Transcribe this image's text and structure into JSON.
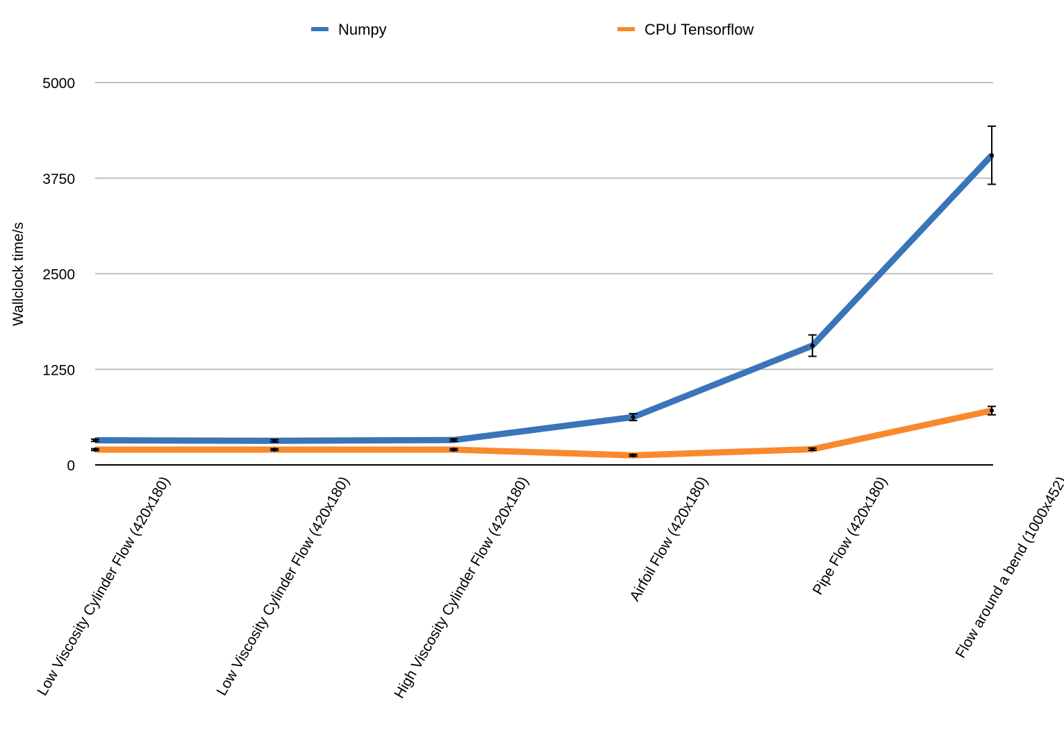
{
  "chart_data": {
    "type": "line",
    "ylabel": "Wallclock time/s",
    "xlabel": "",
    "ylim": [
      0,
      5000
    ],
    "yticks": [
      0,
      1250,
      2500,
      3750,
      5000
    ],
    "grid": true,
    "legend_position": "top",
    "categories": [
      "Low Viscosity Cylinder Flow (420x180)",
      "Low Viscosity Cylinder Flow (420x180)",
      "High Viscosity Cylinder Flow (420x180)",
      "Airfoil Flow (420x180)",
      "Pipe Flow (420x180)",
      "Flow around a bend (1000x452)"
    ],
    "series": [
      {
        "name": "Numpy",
        "color": "#3a74b9",
        "values": [
          322,
          315,
          325,
          625,
          1560,
          4050
        ],
        "error": [
          15,
          15,
          15,
          45,
          140,
          380
        ]
      },
      {
        "name": "CPU Tensorflow",
        "color": "#f88a2d",
        "values": [
          200,
          200,
          200,
          125,
          205,
          710
        ],
        "error": [
          12,
          12,
          12,
          12,
          15,
          55
        ]
      }
    ]
  }
}
